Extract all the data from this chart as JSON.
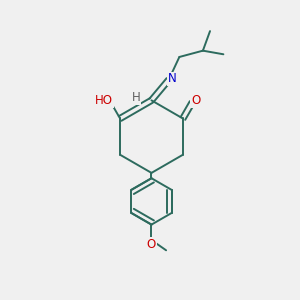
{
  "background_color": "#f0f0f0",
  "bond_color": "#2d6b5e",
  "bond_width": 1.4,
  "atom_colors": {
    "O": "#cc0000",
    "N": "#0000cc",
    "H": "#606060",
    "C": "#2d6b5e"
  },
  "font_size": 8.5
}
